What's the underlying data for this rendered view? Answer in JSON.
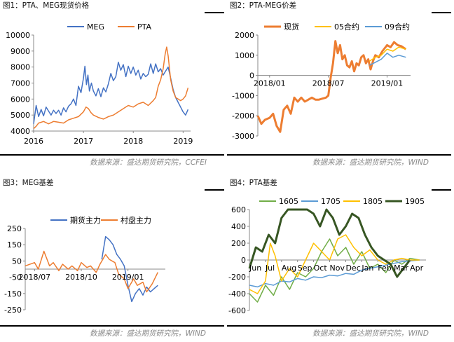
{
  "panels": [
    {
      "title": "图1：PTA、MEG现货价格",
      "source": "数据来源：盛达期货研究院，CCFEI"
    },
    {
      "title": "图2：PTA-MEG价差",
      "source": "数据来源：盛达期货研究院，WIND"
    },
    {
      "title": "图3：MEG基差",
      "source": "数据来源：盛达期货研究院，WIND"
    },
    {
      "title": "图4：PTA基差",
      "source": "数据来源：盛达期货研究院，WIND"
    }
  ],
  "chart_data": [
    {
      "type": "line",
      "title": "图1：PTA、MEG现货价格",
      "ylim": [
        4000,
        10000
      ],
      "yticks": [
        "4000",
        "5000",
        "6000",
        "7000",
        "8000",
        "9000",
        "10000"
      ],
      "xticklabels": [
        "2016",
        "2017",
        "2018",
        "2019"
      ],
      "xlim": [
        2016.0,
        2019.15
      ],
      "xticks": [
        2016.0,
        2017.0,
        2018.0,
        2019.0
      ],
      "legend": "top-center",
      "grid": false,
      "series": [
        {
          "name": "MEG",
          "color": "#4472C4",
          "x": [
            2016.0,
            2016.05,
            2016.1,
            2016.15,
            2016.2,
            2016.25,
            2016.3,
            2016.35,
            2016.4,
            2016.45,
            2016.5,
            2016.55,
            2016.6,
            2016.65,
            2016.7,
            2016.75,
            2016.8,
            2016.85,
            2016.9,
            2016.95,
            2017.0,
            2017.03,
            2017.06,
            2017.09,
            2017.12,
            2017.16,
            2017.2,
            2017.25,
            2017.3,
            2017.35,
            2017.4,
            2017.45,
            2017.5,
            2017.55,
            2017.6,
            2017.65,
            2017.7,
            2017.75,
            2017.8,
            2017.85,
            2017.9,
            2017.95,
            2018.0,
            2018.05,
            2018.1,
            2018.15,
            2018.2,
            2018.25,
            2018.3,
            2018.35,
            2018.4,
            2018.45,
            2018.5,
            2018.55,
            2018.6,
            2018.65,
            2018.7,
            2018.75,
            2018.8,
            2018.85,
            2018.9,
            2018.95,
            2019.0,
            2019.05,
            2019.1
          ],
          "y": [
            4450,
            5600,
            4900,
            5350,
            4950,
            5500,
            5250,
            5000,
            5300,
            5100,
            5300,
            5000,
            5450,
            5200,
            5550,
            5700,
            6000,
            5600,
            6800,
            6400,
            7300,
            8050,
            6900,
            7500,
            6500,
            7000,
            6500,
            6200,
            6650,
            6150,
            6700,
            6450,
            6950,
            7600,
            7150,
            7400,
            8300,
            7800,
            8150,
            7400,
            8050,
            7600,
            8000,
            7500,
            7800,
            7250,
            7600,
            7400,
            7550,
            8200,
            7600,
            8200,
            7700,
            7900,
            7500,
            7750,
            8000,
            7300,
            6600,
            6100,
            5800,
            5500,
            5200,
            5000,
            5350
          ]
        },
        {
          "name": "PTA",
          "color": "#ED7D31",
          "x": [
            2016.0,
            2016.05,
            2016.1,
            2016.2,
            2016.3,
            2016.4,
            2016.5,
            2016.6,
            2016.7,
            2016.8,
            2016.9,
            2017.0,
            2017.05,
            2017.1,
            2017.15,
            2017.2,
            2017.3,
            2017.4,
            2017.5,
            2017.6,
            2017.7,
            2017.8,
            2017.9,
            2018.0,
            2018.1,
            2018.2,
            2018.3,
            2018.4,
            2018.45,
            2018.5,
            2018.55,
            2018.6,
            2018.64,
            2018.67,
            2018.7,
            2018.75,
            2018.8,
            2018.85,
            2018.9,
            2018.95,
            2019.0,
            2019.05,
            2019.1
          ],
          "y": [
            4150,
            4300,
            4500,
            4600,
            4450,
            4600,
            4550,
            4500,
            4700,
            4800,
            4900,
            5200,
            5500,
            5400,
            5150,
            5000,
            4850,
            4750,
            4900,
            5000,
            5200,
            5400,
            5600,
            5500,
            5700,
            5800,
            5600,
            5900,
            6100,
            6800,
            7200,
            7900,
            8800,
            9250,
            8700,
            7200,
            6500,
            6100,
            6000,
            5900,
            6000,
            6200,
            6700
          ]
        }
      ]
    },
    {
      "type": "line",
      "title": "图2：PTA-MEG价差",
      "ylim": [
        -3000,
        2000
      ],
      "yticks": [
        "-3000",
        "-2000",
        "-1000",
        "0",
        "1000",
        "2000"
      ],
      "xticklabels": [
        "2018/01",
        "2018/07",
        "2019/01"
      ],
      "xlim": [
        2017.9,
        2019.2
      ],
      "xticks": [
        2018.0,
        2018.5,
        2019.0
      ],
      "legend": "top-center",
      "grid": false,
      "series": [
        {
          "name": "现货",
          "color": "#ED7D31",
          "x": [
            2017.9,
            2017.93,
            2017.96,
            2018.0,
            2018.03,
            2018.06,
            2018.09,
            2018.12,
            2018.15,
            2018.18,
            2018.21,
            2018.24,
            2018.27,
            2018.3,
            2018.33,
            2018.36,
            2018.39,
            2018.42,
            2018.45,
            2018.48,
            2018.5,
            2018.52,
            2018.54,
            2018.56,
            2018.58,
            2018.6,
            2018.62,
            2018.64,
            2018.66,
            2018.68,
            2018.7,
            2018.72,
            2018.74,
            2018.76,
            2018.78,
            2018.8,
            2018.82,
            2018.84,
            2018.86,
            2018.88,
            2018.9,
            2018.93,
            2018.96,
            2019.0,
            2019.03,
            2019.06,
            2019.09,
            2019.12,
            2019.16
          ],
          "y": [
            -2000,
            -2400,
            -2200,
            -2100,
            -1900,
            -2500,
            -2800,
            -1700,
            -1500,
            -1900,
            -1100,
            -1300,
            -1100,
            -1300,
            -1200,
            -1100,
            -1200,
            -1200,
            -1150,
            -1100,
            -1000,
            -100,
            600,
            1700,
            1100,
            1500,
            800,
            1000,
            500,
            400,
            700,
            200,
            600,
            500,
            900,
            1000,
            600,
            800,
            300,
            700,
            1000,
            900,
            1200,
            1500,
            1400,
            1650,
            1500,
            1450,
            1300
          ]
        },
        {
          "name": "05合约",
          "color": "#FFC000",
          "x": [
            2018.85,
            2018.9,
            2018.95,
            2019.0,
            2019.05,
            2019.1,
            2019.16
          ],
          "y": [
            700,
            900,
            1000,
            1300,
            1200,
            1400,
            1300
          ]
        },
        {
          "name": "09合约",
          "color": "#5B9BD5",
          "x": [
            2018.85,
            2018.9,
            2018.95,
            2019.0,
            2019.05,
            2019.1,
            2019.16
          ],
          "y": [
            500,
            650,
            800,
            1100,
            900,
            1000,
            900
          ]
        }
      ]
    },
    {
      "type": "line",
      "title": "图3：MEG基差",
      "ylim": [
        -250,
        250
      ],
      "yticks": [
        "-250",
        "-150",
        "-50",
        "50",
        "150",
        "250"
      ],
      "xticklabels": [
        "2018/07",
        "2018/10",
        "2019/01"
      ],
      "xlim": [
        2018.45,
        2019.2
      ],
      "xticks": [
        2018.5,
        2018.75,
        2019.0
      ],
      "legend": "top-center",
      "grid": false,
      "series": [
        {
          "name": "期货主力",
          "color": "#4472C4",
          "x": [
            2018.86,
            2018.88,
            2018.9,
            2018.92,
            2018.94,
            2018.96,
            2018.98,
            2019.0,
            2019.02,
            2019.04,
            2019.06,
            2019.08,
            2019.1,
            2019.12,
            2019.14,
            2019.16
          ],
          "y": [
            60,
            200,
            180,
            150,
            90,
            60,
            20,
            -100,
            -200,
            -150,
            -120,
            -160,
            -110,
            -140,
            -120,
            -100
          ]
        },
        {
          "name": "村盘主力",
          "color": "#ED7D31",
          "x": [
            2018.45,
            2018.5,
            2018.52,
            2018.55,
            2018.58,
            2018.6,
            2018.63,
            2018.65,
            2018.68,
            2018.7,
            2018.73,
            2018.75,
            2018.78,
            2018.8,
            2018.83,
            2018.85,
            2018.88,
            2018.9,
            2018.93,
            2018.95,
            2018.98,
            2019.0,
            2019.03,
            2019.05,
            2019.08,
            2019.1,
            2019.13,
            2019.16
          ],
          "y": [
            20,
            40,
            0,
            110,
            20,
            40,
            -10,
            30,
            0,
            20,
            -10,
            40,
            10,
            20,
            -20,
            30,
            90,
            60,
            40,
            -30,
            -60,
            -120,
            -60,
            -100,
            -80,
            -140,
            -90,
            -20
          ]
        }
      ]
    },
    {
      "type": "line",
      "title": "图4：PTA基差",
      "ylim": [
        -600,
        600
      ],
      "yticks": [
        "-600",
        "-400",
        "-200",
        "0",
        "200",
        "400",
        "600"
      ],
      "xticklabels": [
        "Jun",
        "Jul",
        "Aug",
        "Sep",
        "Oct",
        "Nov",
        "Dec",
        "Jan",
        "Feb",
        "Mar",
        "Apr"
      ],
      "xlim": [
        0,
        11
      ],
      "xticks": [
        0,
        1,
        2,
        3,
        4,
        5,
        6,
        7,
        8,
        9,
        10
      ],
      "legend": "top-center",
      "grid": false,
      "series": [
        {
          "name": "1605",
          "color": "#70AD47",
          "x": [
            0,
            0.5,
            1,
            1.5,
            2,
            2.5,
            3,
            3.5,
            4,
            4.5,
            5,
            5.5,
            6,
            6.5,
            7,
            7.5,
            8,
            8.5,
            9,
            9.5,
            10,
            10.6
          ],
          "y": [
            -400,
            -500,
            -300,
            -420,
            -200,
            -350,
            -150,
            -200,
            -100,
            100,
            250,
            50,
            150,
            -50,
            100,
            -100,
            -50,
            -150,
            0,
            -50,
            20,
            0
          ]
        },
        {
          "name": "1705",
          "color": "#5B9BD5",
          "x": [
            0,
            0.5,
            1,
            1.5,
            2,
            2.5,
            3,
            3.5,
            4,
            4.5,
            5,
            5.5,
            6,
            6.5,
            7,
            7.5,
            8,
            8.5,
            9,
            9.5,
            10,
            10.6
          ],
          "y": [
            -300,
            -320,
            -280,
            -300,
            -250,
            -260,
            -220,
            -240,
            -200,
            -210,
            -180,
            -190,
            -160,
            -170,
            -120,
            -100,
            -80,
            -60,
            -40,
            -20,
            -10,
            0
          ]
        },
        {
          "name": "1805",
          "color": "#FFC000",
          "x": [
            0,
            0.5,
            1,
            1.3,
            1.6,
            2,
            2.5,
            3,
            3.5,
            4,
            4.5,
            5,
            5.5,
            6,
            6.5,
            7,
            7.5,
            8,
            8.5,
            9,
            9.5,
            10,
            10.6
          ],
          "y": [
            -350,
            -400,
            -250,
            200,
            50,
            -250,
            -100,
            -200,
            0,
            200,
            100,
            0,
            250,
            300,
            150,
            50,
            120,
            0,
            -50,
            0,
            20,
            0,
            0
          ]
        },
        {
          "name": "1905",
          "color": "#375623",
          "x": [
            0,
            0.4,
            0.8,
            1.2,
            1.6,
            2.0,
            2.4,
            2.8,
            3.2,
            3.6,
            4.0,
            4.4,
            4.8,
            5.2,
            5.6,
            6.0,
            6.4,
            6.8,
            7.2,
            7.6,
            8.0,
            8.4,
            8.8,
            9.2,
            9.6,
            10.0
          ],
          "y": [
            -100,
            150,
            100,
            300,
            200,
            500,
            600,
            600,
            600,
            600,
            550,
            400,
            600,
            500,
            300,
            400,
            550,
            500,
            300,
            150,
            50,
            0,
            -50,
            -200,
            -100,
            0
          ]
        }
      ]
    }
  ]
}
